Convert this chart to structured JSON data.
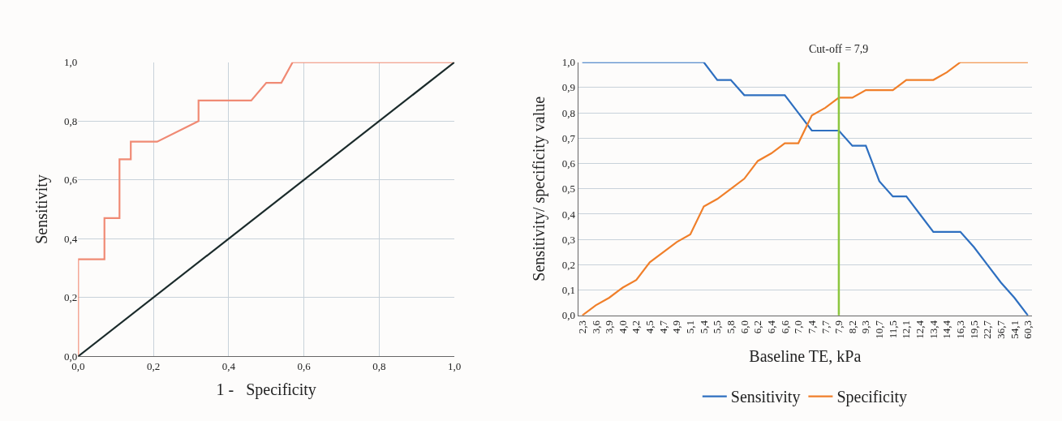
{
  "chart_data": [
    {
      "type": "line",
      "xlabel": "1 -   Specificity",
      "ylabel": "Sensitivity",
      "grid": true,
      "legend": false,
      "xlim": [
        0,
        1
      ],
      "ylim": [
        0,
        1
      ],
      "xticks": [
        {
          "value": 0,
          "label": "0,0"
        },
        {
          "value": 0.2,
          "label": "0,2"
        },
        {
          "value": 0.4,
          "label": "0,4"
        },
        {
          "value": 0.6,
          "label": "0,6"
        },
        {
          "value": 0.8,
          "label": "0,8"
        },
        {
          "value": 1,
          "label": "1,0"
        }
      ],
      "yticks": [
        {
          "value": 0,
          "label": "0,0"
        },
        {
          "value": 0.2,
          "label": "0,2"
        },
        {
          "value": 0.4,
          "label": "0,4"
        },
        {
          "value": 0.6,
          "label": "0,6"
        },
        {
          "value": 0.8,
          "label": "0,8"
        },
        {
          "value": 1,
          "label": "1,0"
        }
      ],
      "series": [
        {
          "color": "#f08a74",
          "x": [
            0,
            0,
            0.07,
            0.07,
            0.11,
            0.11,
            0.14,
            0.14,
            0.21,
            0.32,
            0.32,
            0.46,
            0.5,
            0.54,
            0.57,
            1
          ],
          "values": [
            0,
            0.33,
            0.33,
            0.47,
            0.47,
            0.67,
            0.67,
            0.73,
            0.73,
            0.8,
            0.87,
            0.87,
            0.93,
            0.93,
            1,
            1
          ]
        },
        {
          "color": "#1a2a2a",
          "x": [
            0,
            1
          ],
          "values": [
            0,
            1
          ]
        }
      ]
    },
    {
      "type": "line",
      "xlabel": "Baseline TE, kPa",
      "ylabel": "Sensitivity/ specificity value",
      "grid": "y",
      "legend": "bottom",
      "categories": [
        "2,3",
        "3,6",
        "3,9",
        "4,0",
        "4,2",
        "4,5",
        "4,7",
        "4,9",
        "5,1",
        "5,4",
        "5,5",
        "5,8",
        "6,0",
        "6,2",
        "6,4",
        "6,6",
        "7,0",
        "7,4",
        "7,7",
        "7,9",
        "8,2",
        "9,3",
        "10,7",
        "11,5",
        "12,1",
        "12,4",
        "13,4",
        "14,4",
        "16,3",
        "19,5",
        "22,7",
        "36,7",
        "54,1",
        "60,3"
      ],
      "ylim": [
        0,
        1
      ],
      "yticks": [
        {
          "value": 0,
          "label": "0,0"
        },
        {
          "value": 0.1,
          "label": "0,1"
        },
        {
          "value": 0.2,
          "label": "0,2"
        },
        {
          "value": 0.3,
          "label": "0,3"
        },
        {
          "value": 0.4,
          "label": "0,4"
        },
        {
          "value": 0.5,
          "label": "0,5"
        },
        {
          "value": 0.6,
          "label": "0,6"
        },
        {
          "value": 0.7,
          "label": "0,7"
        },
        {
          "value": 0.8,
          "label": "0,8"
        },
        {
          "value": 0.9,
          "label": "0,9"
        },
        {
          "value": 1,
          "label": "1,0"
        }
      ],
      "series": [
        {
          "name": "Sensitivity",
          "color": "#2e6fc0",
          "values": [
            1,
            1,
            1,
            1,
            1,
            1,
            1,
            1,
            1,
            1,
            0.93,
            0.93,
            0.87,
            0.87,
            0.87,
            0.87,
            0.8,
            0.73,
            0.73,
            0.73,
            0.67,
            0.67,
            0.53,
            0.47,
            0.47,
            0.4,
            0.33,
            0.33,
            0.33,
            0.27,
            0.2,
            0.13,
            0.07,
            0
          ]
        },
        {
          "name": "Specificity",
          "color": "#f07f2a",
          "values": [
            0,
            0.04,
            0.07,
            0.11,
            0.14,
            0.21,
            0.25,
            0.29,
            0.32,
            0.43,
            0.46,
            0.5,
            0.54,
            0.61,
            0.64,
            0.68,
            0.68,
            0.79,
            0.82,
            0.86,
            0.86,
            0.89,
            0.89,
            0.89,
            0.93,
            0.93,
            0.93,
            0.96,
            1,
            1,
            1,
            1,
            1,
            1
          ]
        }
      ],
      "ref_lines": [
        {
          "axis": "x",
          "value": "7,9",
          "label": "Cut-off = 7,9",
          "color": "#8cc63f"
        }
      ]
    }
  ]
}
